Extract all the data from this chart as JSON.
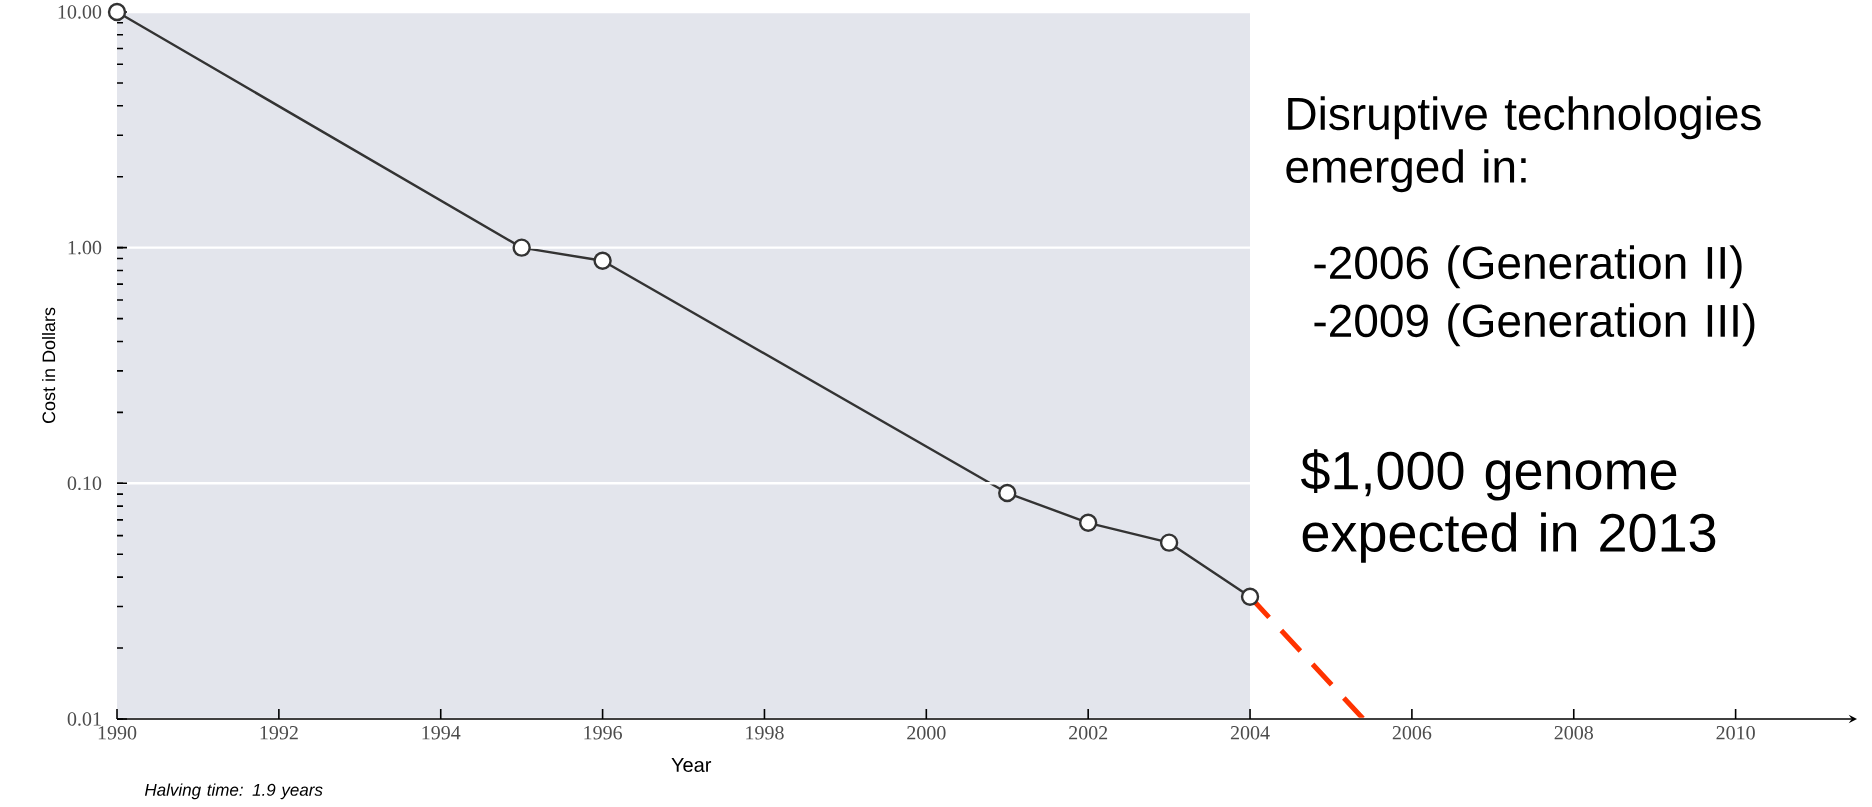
{
  "chart_data": {
    "type": "line",
    "xlabel": "Year",
    "ylabel": "Cost in Dollars",
    "log": "y",
    "grid": "y",
    "xlim": [
      1990,
      2011.5
    ],
    "xticks": [
      1990,
      1992,
      1994,
      1996,
      1998,
      2000,
      2002,
      2004,
      2006,
      2008,
      2010
    ],
    "ylim": [
      0.01,
      10
    ],
    "yticks": [
      {
        "value": 0.01,
        "label": "0.01"
      },
      {
        "value": 0.1,
        "label": "0.10"
      },
      {
        "value": 1,
        "label": "1.00"
      },
      {
        "value": 10,
        "label": "10.00"
      }
    ],
    "series": [
      {
        "color": "#333333",
        "marker": "circle",
        "line_style": "solid",
        "x": [
          1990,
          1995,
          1996,
          2001,
          2002,
          2003,
          2004
        ],
        "values": [
          10,
          1.0,
          0.88,
          0.091,
          0.068,
          0.056,
          0.033
        ]
      },
      {
        "color": "#ff3300",
        "marker": "none",
        "line_style": "dashed",
        "x": [
          2004,
          2005.4
        ],
        "values": [
          0.033,
          0.01
        ]
      }
    ],
    "bands": [
      {
        "axis": "x",
        "from": 1990,
        "to": 2004,
        "color": "#e3e5ec"
      }
    ],
    "annotations": [
      "Disruptive technologies emerged in:",
      "-2006 (Generation II)",
      "-2009 (Generation III)",
      "$1,000 genome expected in 2013",
      "Halving time: 1.9 years"
    ]
  }
}
